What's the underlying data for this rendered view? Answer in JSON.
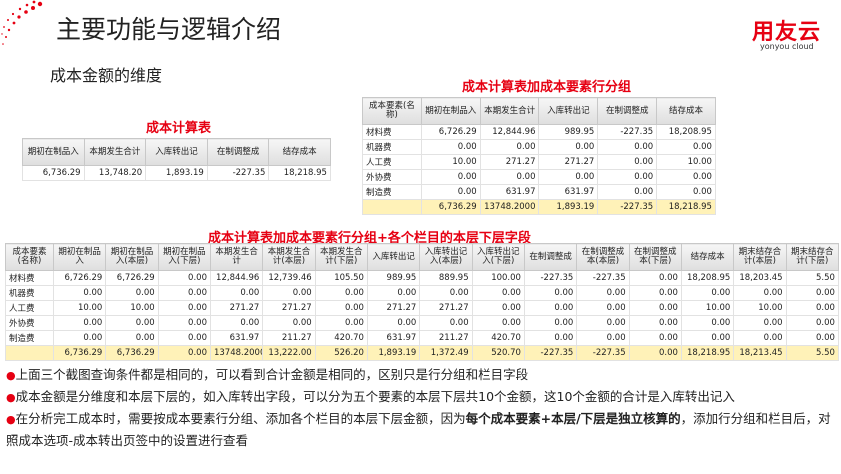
{
  "header": {
    "title": "主要功能与逻辑介绍",
    "subtitle": "成本金额的维度",
    "logo": "用友云",
    "logo_sub": "yonyou cloud"
  },
  "tables": [
    {
      "caption": "成本计算表",
      "columns": [
        "期初在制品入",
        "本期发生合计",
        "入库转出记",
        "在制调整成",
        "结存成本"
      ],
      "rows": [
        [
          "6,736.29",
          "13,748.20",
          "1,893.19",
          "-227.35",
          "18,218.95"
        ]
      ],
      "total": null
    },
    {
      "caption": "成本计算表加成本要素行分组",
      "columns": [
        "成本要素(名称)",
        "期初在制品入",
        "本期发生合计",
        "入库转出记",
        "在制调整成",
        "结存成本"
      ],
      "rows": [
        [
          "材料费",
          "6,726.29",
          "12,844.96",
          "989.95",
          "-227.35",
          "18,208.95"
        ],
        [
          "机器费",
          "0.00",
          "0.00",
          "0.00",
          "0.00",
          "0.00"
        ],
        [
          "人工费",
          "10.00",
          "271.27",
          "271.27",
          "0.00",
          "10.00"
        ],
        [
          "外协费",
          "0.00",
          "0.00",
          "0.00",
          "0.00",
          "0.00"
        ],
        [
          "制造费",
          "0.00",
          "631.97",
          "631.97",
          "0.00",
          "0.00"
        ]
      ],
      "total": [
        null,
        "6,736.29",
        "13748.2000",
        "1,893.19",
        "-227.35",
        "18,218.95"
      ]
    },
    {
      "caption": "成本计算表加成本要素行分组+各个栏目的本层下层字段",
      "columns": [
        "成本要素(名称)",
        "期初在制品入",
        "期初在制品入(本层)",
        "期初在制品入(下层)",
        "本期发生合计",
        "本期发生合计(本层)",
        "本期发生合计(下层)",
        "入库转出记",
        "入库转出记入(本层)",
        "入库转出记入(下层)",
        "在制调整成",
        "在制调整成本(本层)",
        "在制调整成本(下层)",
        "结存成本",
        "期末结存合计(本层)",
        "期末结存合计(下层)"
      ],
      "rows": [
        [
          "材料费",
          "6,726.29",
          "6,726.29",
          "0.00",
          "12,844.96",
          "12,739.46",
          "105.50",
          "989.95",
          "889.95",
          "100.00",
          "-227.35",
          "-227.35",
          "0.00",
          "18,208.95",
          "18,203.45",
          "5.50"
        ],
        [
          "机器费",
          "0.00",
          "0.00",
          "0.00",
          "0.00",
          "0.00",
          "0.00",
          "0.00",
          "0.00",
          "0.00",
          "0.00",
          "0.00",
          "0.00",
          "0.00",
          "0.00",
          "0.00"
        ],
        [
          "人工费",
          "10.00",
          "10.00",
          "0.00",
          "271.27",
          "271.27",
          "0.00",
          "271.27",
          "271.27",
          "0.00",
          "0.00",
          "0.00",
          "0.00",
          "10.00",
          "10.00",
          "0.00"
        ],
        [
          "外协费",
          "0.00",
          "0.00",
          "0.00",
          "0.00",
          "0.00",
          "0.00",
          "0.00",
          "0.00",
          "0.00",
          "0.00",
          "0.00",
          "0.00",
          "0.00",
          "0.00",
          "0.00"
        ],
        [
          "制造费",
          "0.00",
          "0.00",
          "0.00",
          "631.97",
          "211.27",
          "420.70",
          "631.97",
          "211.27",
          "420.70",
          "0.00",
          "0.00",
          "0.00",
          "0.00",
          "0.00",
          "0.00"
        ]
      ],
      "total": [
        null,
        "6,736.29",
        "6,736.29",
        "0.00",
        "13748.2000",
        "13,222.00",
        "526.20",
        "1,893.19",
        "1,372.49",
        "520.70",
        "-227.35",
        "-227.35",
        "0.00",
        "18,218.95",
        "18,213.45",
        "5.50"
      ]
    }
  ],
  "notes": [
    [
      {
        "text": "上面三个截图查询条件都是相同的，可以看到合计金额是相同的，区别只是行分组和栏目字段"
      }
    ],
    [
      {
        "text": "成本金额是分维度和本层下层的，如入库转出字段，可以分为五个要素的本层下层共10个金额，这10个金额的合计是入库转出记入"
      }
    ],
    [
      {
        "text": "在分析完工成本时，需要按成本要素行分组、添加各个栏目的本层下层金额，因为"
      },
      {
        "text": "每个成本要素+本层/下层是独立核算的",
        "bold": true
      },
      {
        "text": "，添加行分组和栏目后，对照成本选项-成本转出页签中的设置进行查看"
      }
    ]
  ]
}
